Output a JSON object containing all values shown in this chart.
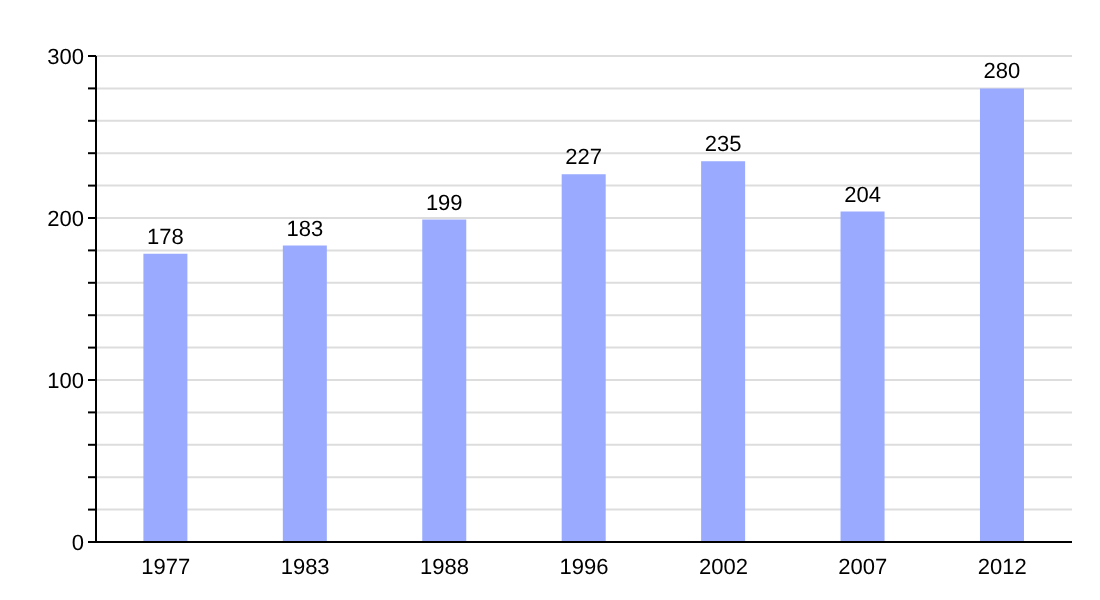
{
  "chart_data": {
    "type": "bar",
    "categories": [
      "1977",
      "1983",
      "1988",
      "1996",
      "2002",
      "2007",
      "2012"
    ],
    "values": [
      178,
      183,
      199,
      227,
      235,
      204,
      280
    ],
    "color": "#99aaff",
    "ylim": [
      0,
      300
    ],
    "yticks": [
      0,
      {
        "value": 20,
        "label": null
      },
      {
        "value": 40,
        "label": null
      },
      {
        "value": 60,
        "label": null
      },
      {
        "value": 80,
        "label": null
      },
      100,
      {
        "value": 120,
        "label": null
      },
      {
        "value": 140,
        "label": null
      },
      {
        "value": 160,
        "label": null
      },
      {
        "value": 180,
        "label": null
      },
      200,
      {
        "value": 220,
        "label": null
      },
      {
        "value": 240,
        "label": null
      },
      {
        "value": 260,
        "label": null
      },
      {
        "value": 280,
        "label": null
      },
      300
    ],
    "grid": "y",
    "data_labels": true
  }
}
